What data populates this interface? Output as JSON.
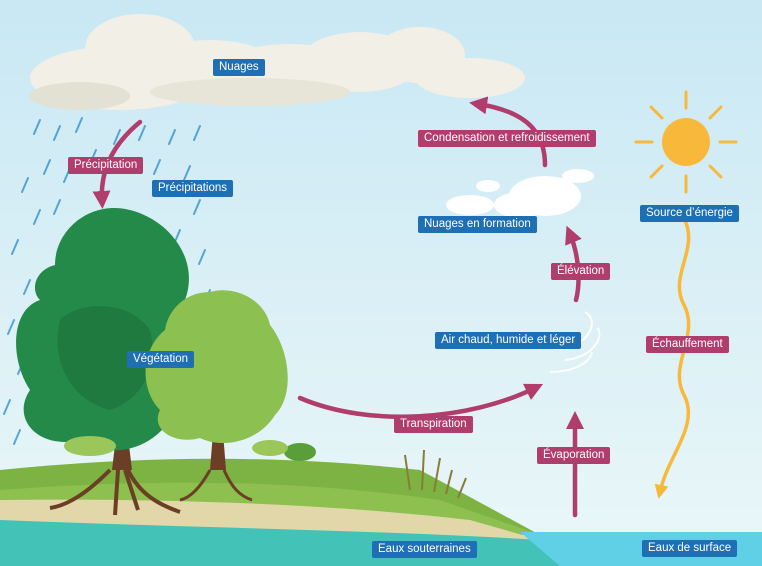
{
  "colors": {
    "label_blue": "#1f6fb4",
    "label_pink": "#b03d6c",
    "arrow": "#b03d6c",
    "sky_top": "#cdeaf5",
    "sky_bottom": "#e6f5f8",
    "water": "#43c2b8",
    "sun": "#f8b93a",
    "grass": "#7cb342",
    "sand": "#e2d7a8"
  },
  "icons": [
    "cloud-icon",
    "sun-icon",
    "tree-icon",
    "rain-icon",
    "arrow-icon"
  ],
  "labels": {
    "nuages": "Nuages",
    "precipitation": "Précipitation",
    "precipitations": "Précipitations",
    "vegetation": "Végétation",
    "transpiration": "Transpiration",
    "air_chaud": "Air chaud, humide et léger",
    "elevation": "Élévation",
    "nuages_formation": "Nuages en formation",
    "condensation": "Condensation et refroidissement",
    "source_energie": "Source d’énergie",
    "echauffement": "Échauffement",
    "evaporation": "Évaporation",
    "eaux_souterraines": "Eaux souterraines",
    "eaux_surface": "Eaux de surface"
  }
}
